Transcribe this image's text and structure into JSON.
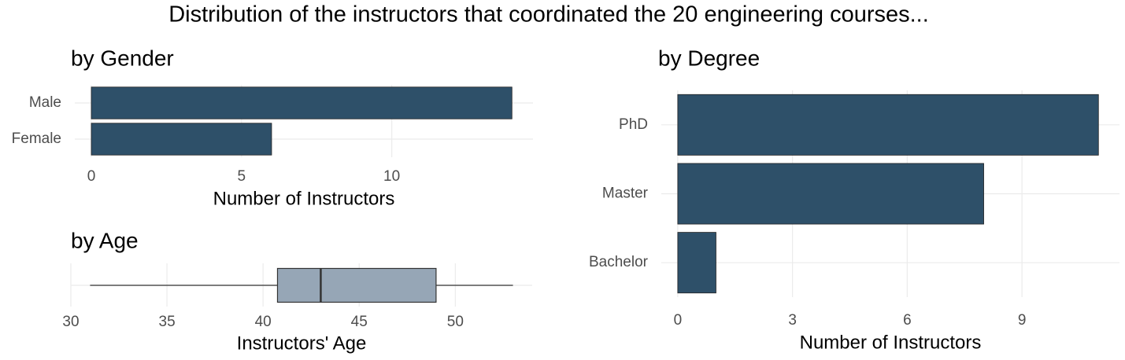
{
  "title": "Distribution of the instructors that coordinated the 20 engineering courses...",
  "chart_data": [
    {
      "type": "bar",
      "orientation": "horizontal",
      "title": "by Gender",
      "x_label": "Number of Instructors",
      "categories": [
        "Male",
        "Female"
      ],
      "values": [
        14,
        6
      ],
      "color": "#2e5069",
      "xlim": [
        -0.55,
        14.7
      ],
      "xticks": [
        0,
        5,
        10
      ],
      "grid": true
    },
    {
      "type": "box",
      "title": "by Age",
      "x_label": "Instructors' Age",
      "box": {
        "whislo": 31,
        "q1": 40.75,
        "med": 43,
        "q3": 49,
        "whishi": 53
      },
      "color": "#96a6b6",
      "xlim": [
        30,
        54
      ],
      "xticks": [
        30,
        35,
        40,
        45,
        50
      ],
      "grid": true
    },
    {
      "type": "bar",
      "orientation": "horizontal",
      "title": "by Degree",
      "x_label": "Number of Instructors",
      "categories": [
        "PhD",
        "Master",
        "Bachelor"
      ],
      "values": [
        11,
        8,
        1
      ],
      "color": "#2e5069",
      "xlim": [
        -0.43,
        11.55
      ],
      "xticks": [
        0,
        3,
        6,
        9
      ],
      "grid": true
    }
  ]
}
